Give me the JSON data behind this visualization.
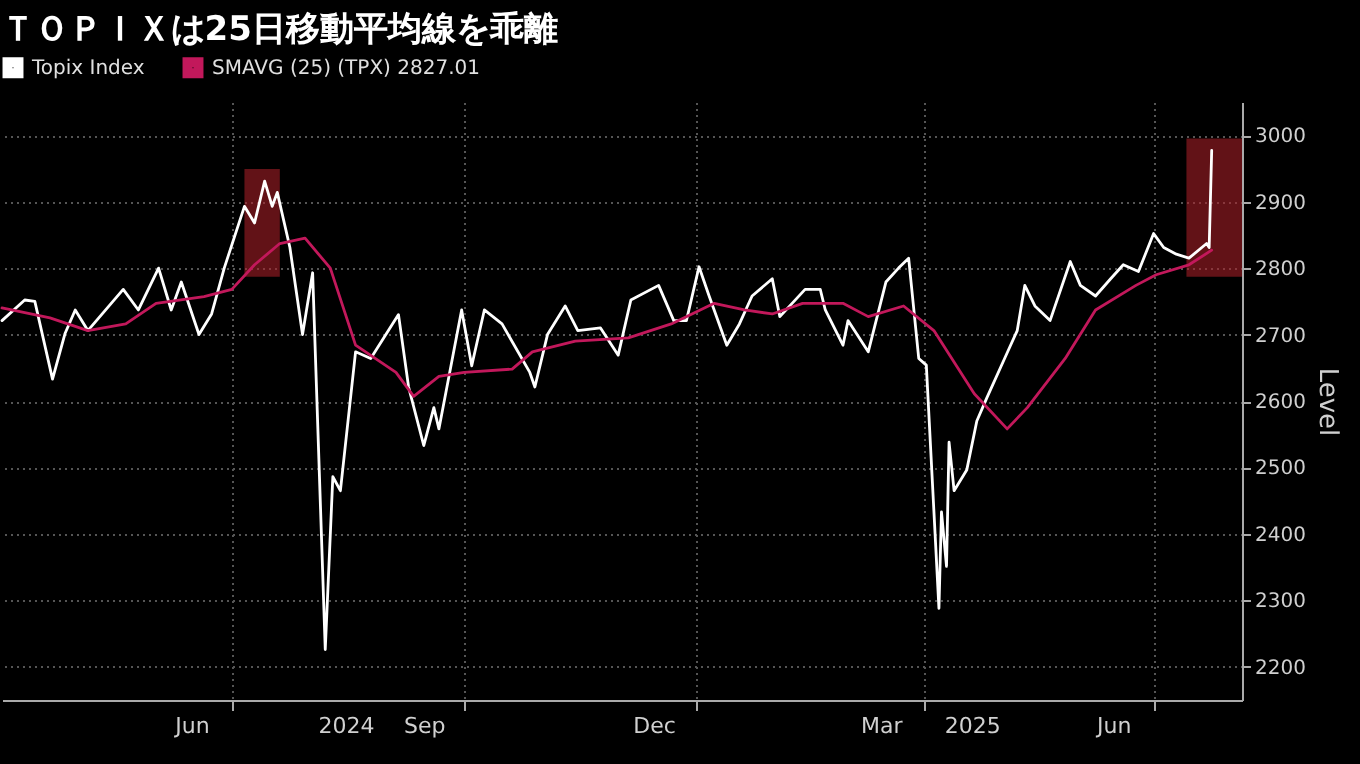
{
  "chart_data": {
    "type": "line",
    "title": "ＴＯＰＩＸは25日移動平均線を乖離",
    "ylabel": "Level",
    "legend": "top left",
    "grid": true,
    "xlim": [
      "2024-04-01",
      "2025-08-05"
    ],
    "ylim": [
      2150,
      3050
    ],
    "yticks": [
      2200,
      2300,
      2400,
      2500,
      2600,
      2700,
      2800,
      2900,
      3000
    ],
    "xticks": [
      {
        "value": "2024-06-15",
        "label": "Jun"
      },
      {
        "value": "2024-08-15",
        "label": "2024"
      },
      {
        "value": "2024-09-15",
        "label": "Sep"
      },
      {
        "value": "2024-12-15",
        "label": "Dec"
      },
      {
        "value": "2025-03-15",
        "label": "Mar"
      },
      {
        "value": "2025-04-20",
        "label": "2025"
      },
      {
        "value": "2025-06-15",
        "label": "Jun"
      },
      {
        "value": "2024-07-01",
        "label": null
      },
      {
        "value": "2024-10-01",
        "label": null
      },
      {
        "value": "2025-01-01",
        "label": null
      },
      {
        "value": "2025-04-01",
        "label": null
      },
      {
        "value": "2025-07-01",
        "label": null
      }
    ],
    "bands": [
      {
        "axis": "x",
        "from": "2024-07-06",
        "to": "2024-07-20",
        "color": "#b3202a"
      },
      {
        "axis": "x",
        "from": "2025-07-14",
        "to": "2025-08-05",
        "color": "#b3202a"
      }
    ],
    "series": [
      {
        "name": "Topix Index",
        "color": "#ffffff",
        "x": [
          "2024-04-01",
          "2024-04-10",
          "2024-04-14",
          "2024-04-21",
          "2024-04-26",
          "2024-04-30",
          "2024-05-05",
          "2024-05-19",
          "2024-05-25",
          "2024-06-02",
          "2024-06-07",
          "2024-06-11",
          "2024-06-18",
          "2024-06-23",
          "2024-06-28",
          "2024-07-06",
          "2024-07-10",
          "2024-07-14",
          "2024-07-17",
          "2024-07-19",
          "2024-07-24",
          "2024-07-29",
          "2024-08-02",
          "2024-08-07",
          "2024-08-10",
          "2024-08-13",
          "2024-08-19",
          "2024-08-25",
          "2024-09-05",
          "2024-09-09",
          "2024-09-15",
          "2024-09-19",
          "2024-09-21",
          "2024-09-30",
          "2024-10-04",
          "2024-10-09",
          "2024-10-16",
          "2024-10-27",
          "2024-10-29",
          "2024-11-03",
          "2024-11-10",
          "2024-11-15",
          "2024-11-24",
          "2024-12-01",
          "2024-12-06",
          "2024-12-17",
          "2024-12-23",
          "2024-12-28",
          "2025-01-02",
          "2025-01-06",
          "2025-01-13",
          "2025-01-18",
          "2025-01-23",
          "2025-01-31",
          "2025-02-03",
          "2025-02-13",
          "2025-02-19",
          "2025-02-21",
          "2025-02-28",
          "2025-03-02",
          "2025-03-10",
          "2025-03-17",
          "2025-03-22",
          "2025-03-26",
          "2025-03-30",
          "2025-04-02",
          "2025-04-07",
          "2025-04-08",
          "2025-04-10",
          "2025-04-11",
          "2025-04-13",
          "2025-04-18",
          "2025-04-22",
          "2025-04-26",
          "2025-05-03",
          "2025-05-08",
          "2025-05-11",
          "2025-05-15",
          "2025-05-21",
          "2025-05-29",
          "2025-06-02",
          "2025-06-08",
          "2025-06-14",
          "2025-06-19",
          "2025-06-25",
          "2025-07-01",
          "2025-07-05",
          "2025-07-10",
          "2025-07-15",
          "2025-07-22",
          "2025-07-23",
          "2025-07-24"
        ],
        "values": [
          2721,
          2752,
          2750,
          2633,
          2702,
          2737,
          2706,
          2768,
          2737,
          2800,
          2737,
          2779,
          2700,
          2731,
          2800,
          2893,
          2868,
          2931,
          2893,
          2914,
          2831,
          2700,
          2793,
          2226,
          2486,
          2465,
          2674,
          2664,
          2730,
          2621,
          2533,
          2590,
          2558,
          2737,
          2653,
          2737,
          2716,
          2643,
          2621,
          2700,
          2743,
          2706,
          2710,
          2669,
          2752,
          2774,
          2721,
          2721,
          2802,
          2758,
          2684,
          2716,
          2758,
          2784,
          2727,
          2768,
          2768,
          2737,
          2684,
          2721,
          2674,
          2779,
          2800,
          2815,
          2664,
          2654,
          2288,
          2433,
          2351,
          2538,
          2465,
          2496,
          2570,
          2605,
          2664,
          2706,
          2774,
          2743,
          2721,
          2810,
          2774,
          2758,
          2784,
          2805,
          2795,
          2852,
          2831,
          2821,
          2815,
          2837,
          2831,
          2977
        ]
      },
      {
        "name": "SMAVG (25) (TPX) 2827.01",
        "color": "#c2185b",
        "x": [
          "2024-04-01",
          "2024-04-20",
          "2024-05-05",
          "2024-05-20",
          "2024-06-01",
          "2024-06-20",
          "2024-07-01",
          "2024-07-10",
          "2024-07-20",
          "2024-07-30",
          "2024-08-09",
          "2024-08-19",
          "2024-09-04",
          "2024-09-11",
          "2024-09-21",
          "2024-10-01",
          "2024-10-20",
          "2024-10-28",
          "2024-11-14",
          "2024-12-05",
          "2024-12-22",
          "2025-01-08",
          "2025-01-20",
          "2025-01-31",
          "2025-02-12",
          "2025-02-28",
          "2025-03-10",
          "2025-03-24",
          "2025-04-05",
          "2025-04-21",
          "2025-05-04",
          "2025-05-12",
          "2025-05-27",
          "2025-06-08",
          "2025-06-24",
          "2025-07-02",
          "2025-07-15",
          "2025-07-24"
        ],
        "values": [
          2740,
          2725,
          2706,
          2716,
          2747,
          2757,
          2768,
          2805,
          2837,
          2845,
          2800,
          2684,
          2643,
          2607,
          2637,
          2643,
          2648,
          2674,
          2690,
          2695,
          2716,
          2747,
          2737,
          2731,
          2747,
          2747,
          2727,
          2743,
          2706,
          2611,
          2558,
          2590,
          2664,
          2737,
          2774,
          2790,
          2805,
          2827
        ]
      }
    ]
  }
}
